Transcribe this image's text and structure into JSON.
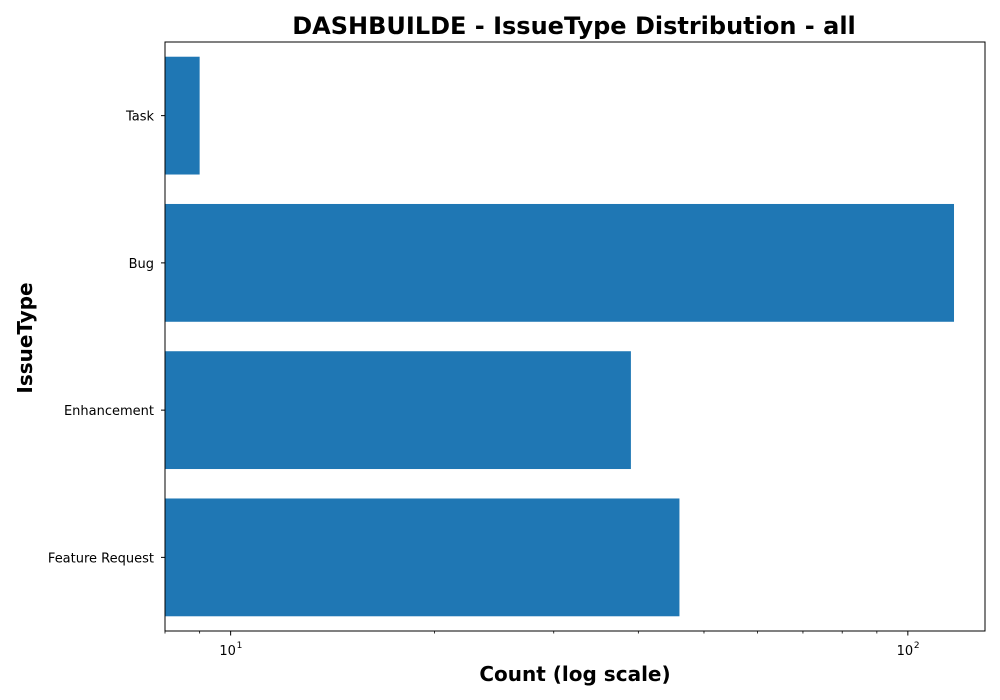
{
  "chart_data": {
    "type": "bar",
    "orientation": "horizontal",
    "title": "DASHBUILDE - IssueType Distribution - all",
    "xlabel": "Count (log scale)",
    "ylabel": "IssueType",
    "x_scale": "log",
    "xlim": [
      8,
      130
    ],
    "x_ticks": [
      {
        "value": 10,
        "base": "10",
        "exp": "1"
      },
      {
        "value": 100,
        "base": "10",
        "exp": "2"
      }
    ],
    "categories": [
      "Task",
      "Bug",
      "Enhancement",
      "Feature Request"
    ],
    "values": [
      9,
      117,
      39,
      46
    ],
    "color": "#1f77b4",
    "grid": false,
    "legend": "none"
  }
}
